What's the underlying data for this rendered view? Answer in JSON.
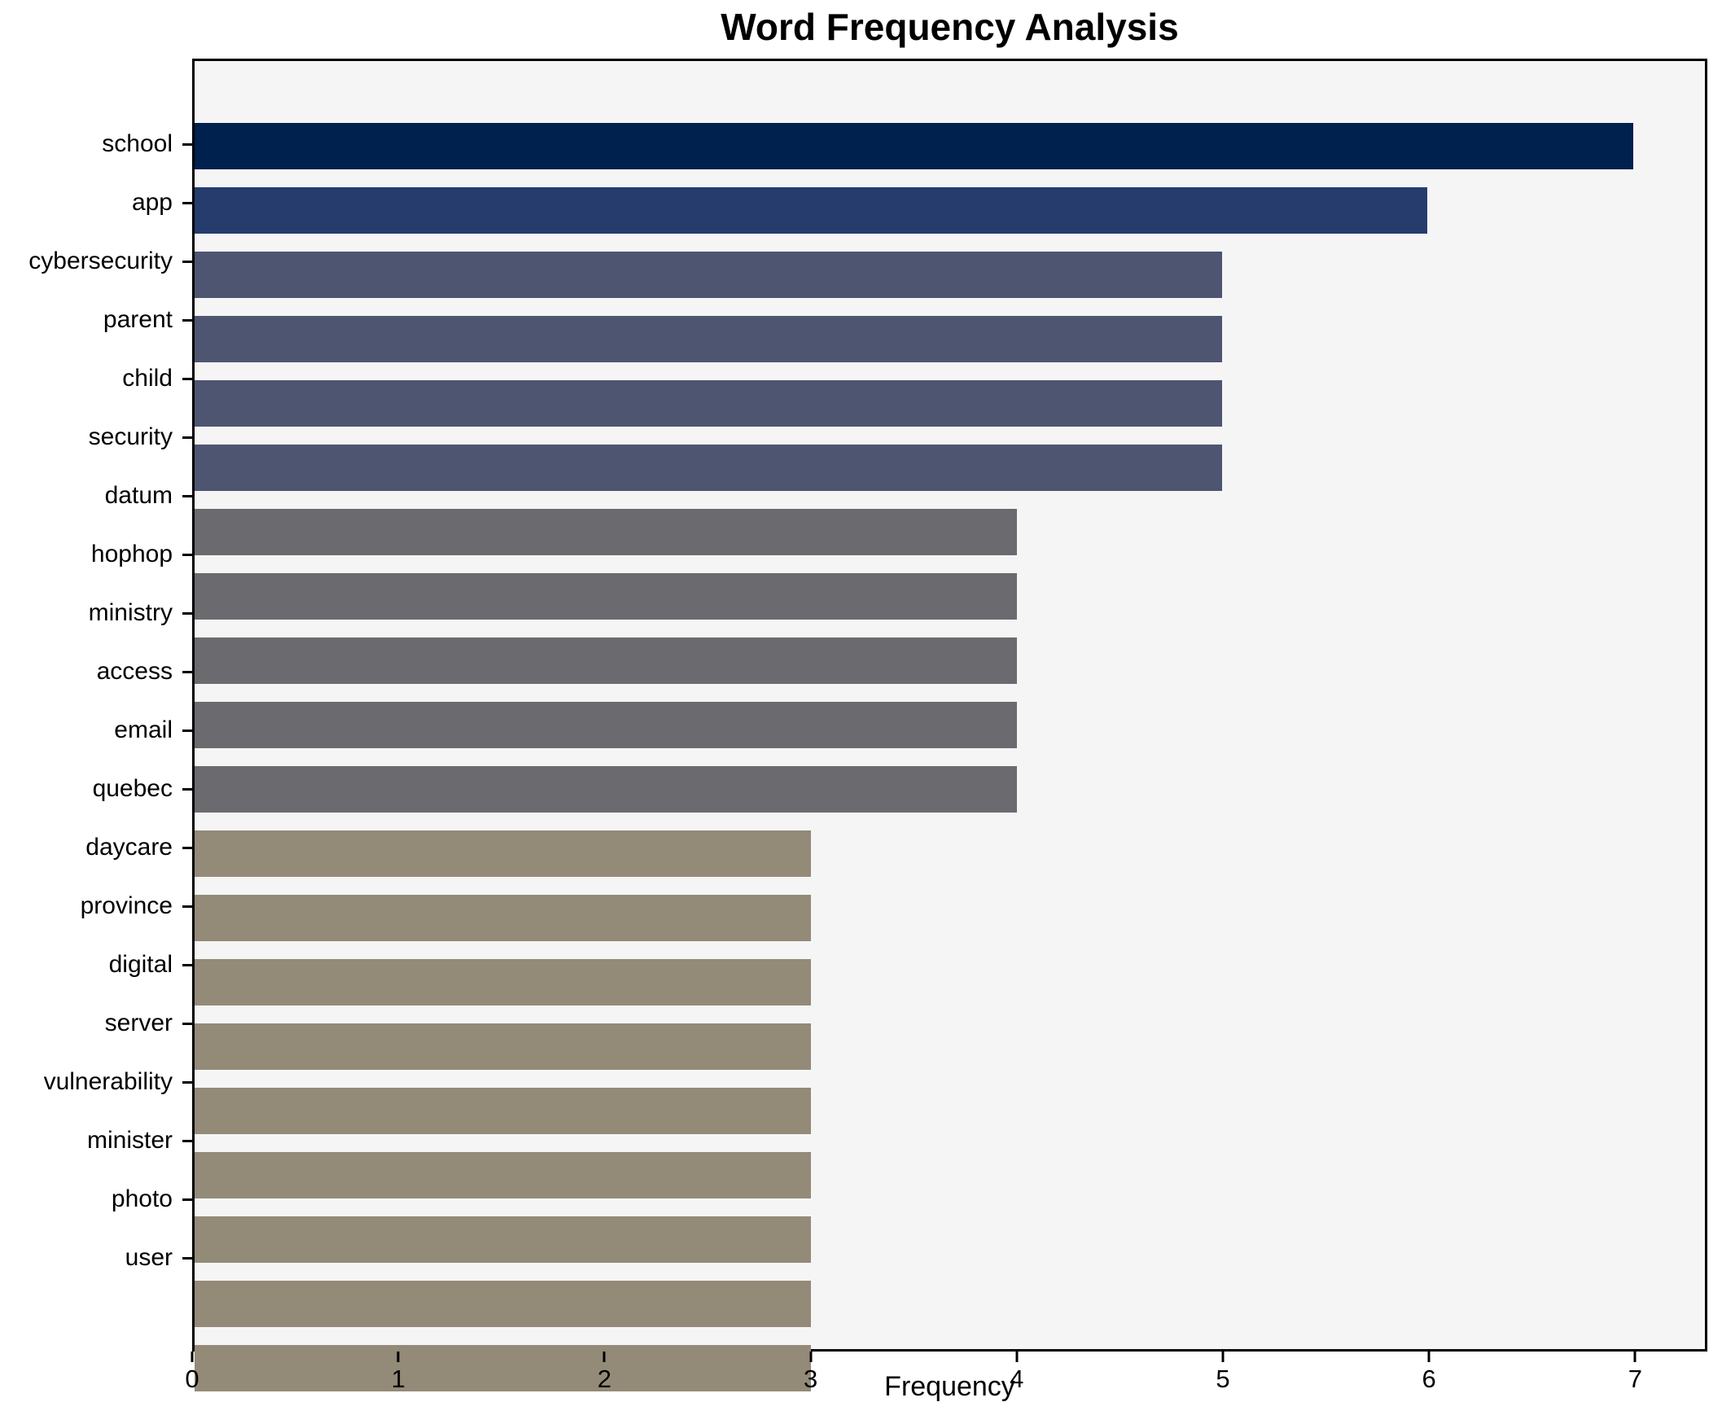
{
  "chart_data": {
    "type": "bar",
    "orientation": "horizontal",
    "title": "Word Frequency Analysis",
    "xlabel": "Frequency",
    "ylabel": "",
    "categories": [
      "school",
      "app",
      "cybersecurity",
      "parent",
      "child",
      "security",
      "datum",
      "hophop",
      "ministry",
      "access",
      "email",
      "quebec",
      "daycare",
      "province",
      "digital",
      "server",
      "vulnerability",
      "minister",
      "photo",
      "user"
    ],
    "values": [
      7,
      6,
      5,
      5,
      5,
      5,
      4,
      4,
      4,
      4,
      4,
      3,
      3,
      3,
      3,
      3,
      3,
      3,
      3,
      3
    ],
    "bar_colors": [
      "#00204e",
      "#253c6d",
      "#4e5571",
      "#4e5571",
      "#4e5571",
      "#4e5571",
      "#6b6b6f",
      "#6b6b6f",
      "#6b6b6f",
      "#6b6b6f",
      "#6b6b6f",
      "#938b78",
      "#938b78",
      "#938b78",
      "#938b78",
      "#938b78",
      "#938b78",
      "#938b78",
      "#938b78",
      "#938b78"
    ],
    "xlim": [
      0,
      7.35
    ],
    "xticks": [
      0,
      1,
      2,
      3,
      4,
      5,
      6,
      7
    ],
    "grid": false,
    "legend": "none",
    "plot_background": "#f5f5f6",
    "spine_color": "#000000",
    "text_color": "#000000"
  }
}
